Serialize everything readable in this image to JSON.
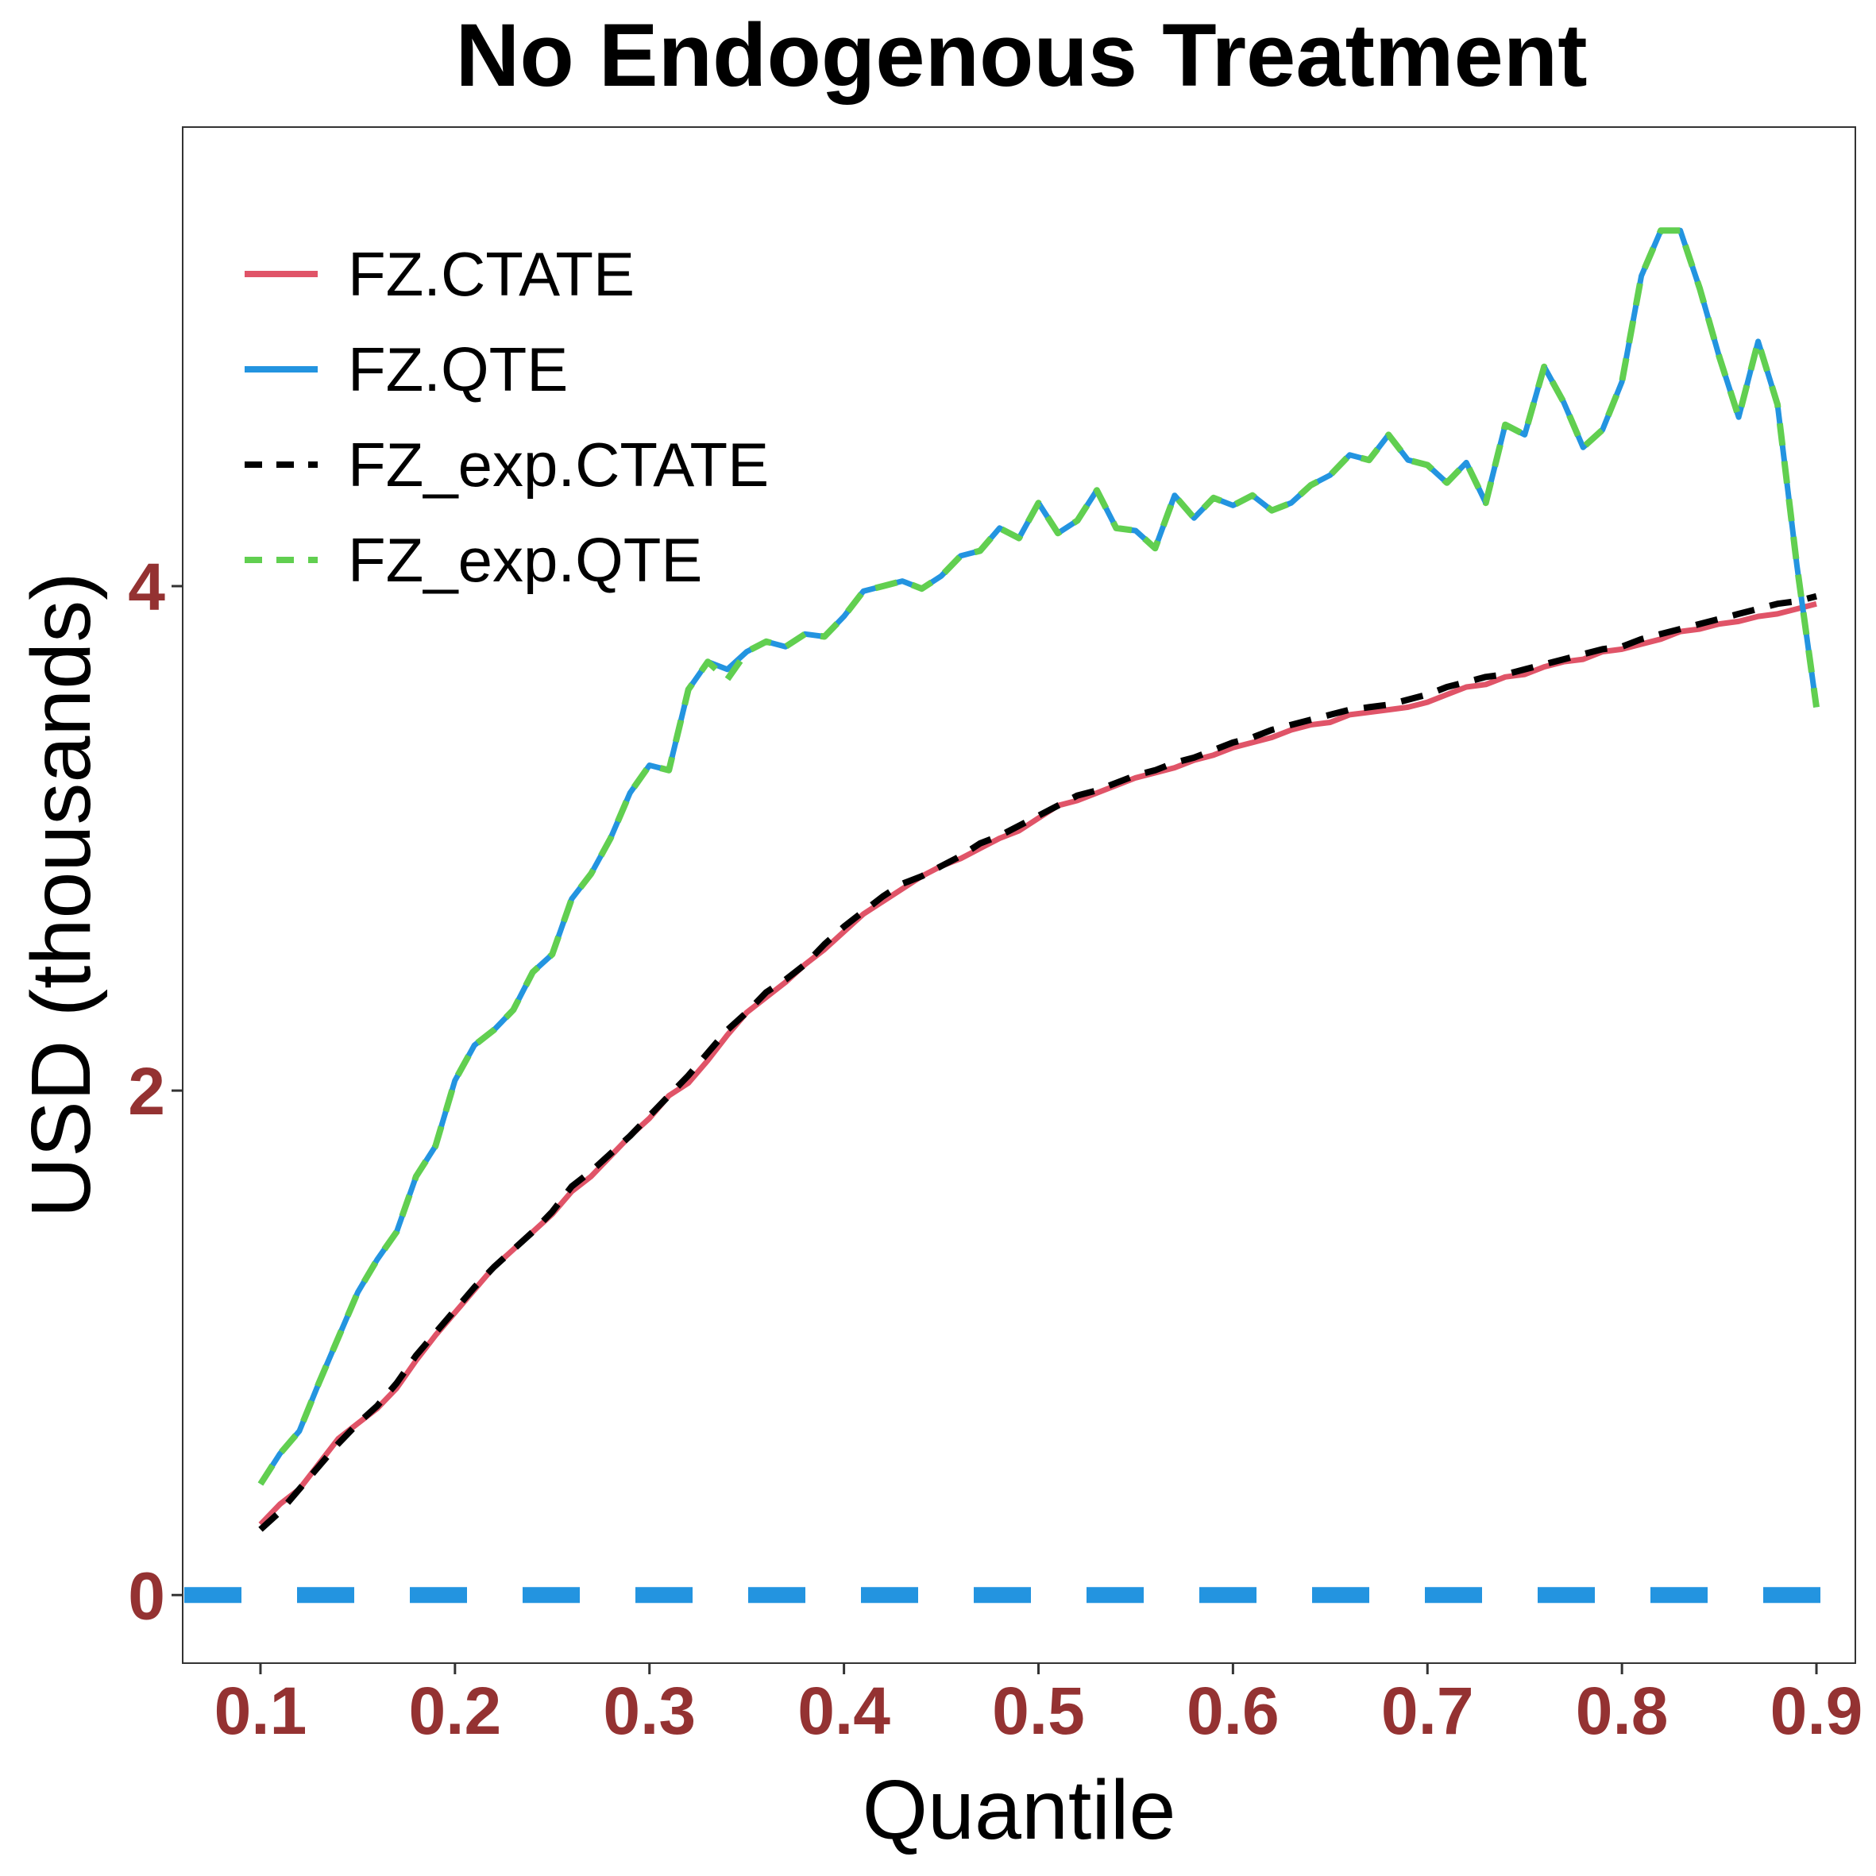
{
  "chart_data": {
    "type": "line",
    "title": "No Endogenous Treatment",
    "xlabel": "Quantile",
    "ylabel": "USD (thousands)",
    "xlim": [
      0.06,
      0.92
    ],
    "ylim": [
      -0.27,
      5.82
    ],
    "x_ticks": [
      0.1,
      0.2,
      0.3,
      0.4,
      0.5,
      0.6,
      0.7,
      0.8,
      0.9
    ],
    "x_tick_labels": [
      "0.1",
      "0.2",
      "0.3",
      "0.4",
      "0.5",
      "0.6",
      "0.7",
      "0.8",
      "0.9"
    ],
    "y_ticks": [
      0,
      2,
      4
    ],
    "y_tick_labels": [
      "0",
      "2",
      "4"
    ],
    "tick_label_color": "#943232",
    "grid": false,
    "legend_position": "top-left",
    "reference_line": {
      "y": 0,
      "color": "#2394e0",
      "style": "dashed"
    },
    "series": [
      {
        "name": "FZ.CTATE",
        "color": "#e05468",
        "dash": "solid",
        "x": [
          0.1,
          0.11,
          0.12,
          0.13,
          0.14,
          0.15,
          0.16,
          0.17,
          0.18,
          0.19,
          0.2,
          0.21,
          0.22,
          0.23,
          0.24,
          0.25,
          0.26,
          0.27,
          0.28,
          0.29,
          0.3,
          0.31,
          0.32,
          0.33,
          0.34,
          0.35,
          0.36,
          0.37,
          0.38,
          0.39,
          0.4,
          0.41,
          0.42,
          0.43,
          0.44,
          0.45,
          0.46,
          0.47,
          0.48,
          0.49,
          0.5,
          0.51,
          0.52,
          0.53,
          0.54,
          0.55,
          0.56,
          0.57,
          0.58,
          0.59,
          0.6,
          0.61,
          0.62,
          0.63,
          0.64,
          0.65,
          0.66,
          0.67,
          0.68,
          0.69,
          0.7,
          0.71,
          0.72,
          0.73,
          0.74,
          0.75,
          0.76,
          0.77,
          0.78,
          0.79,
          0.8,
          0.81,
          0.82,
          0.83,
          0.84,
          0.85,
          0.86,
          0.87,
          0.88,
          0.89,
          0.9
        ],
        "y": [
          0.28,
          0.36,
          0.42,
          0.52,
          0.62,
          0.68,
          0.74,
          0.82,
          0.93,
          1.03,
          1.12,
          1.21,
          1.3,
          1.37,
          1.44,
          1.51,
          1.6,
          1.66,
          1.74,
          1.82,
          1.89,
          1.98,
          2.03,
          2.12,
          2.22,
          2.31,
          2.37,
          2.43,
          2.5,
          2.56,
          2.63,
          2.7,
          2.75,
          2.8,
          2.85,
          2.89,
          2.92,
          2.96,
          3.0,
          3.03,
          3.08,
          3.13,
          3.15,
          3.18,
          3.21,
          3.24,
          3.26,
          3.28,
          3.31,
          3.33,
          3.36,
          3.38,
          3.4,
          3.43,
          3.45,
          3.46,
          3.49,
          3.5,
          3.51,
          3.52,
          3.54,
          3.57,
          3.6,
          3.61,
          3.64,
          3.65,
          3.68,
          3.7,
          3.71,
          3.74,
          3.75,
          3.77,
          3.79,
          3.82,
          3.83,
          3.85,
          3.86,
          3.88,
          3.89,
          3.91,
          3.93
        ]
      },
      {
        "name": "FZ.QTE",
        "color": "#2394e0",
        "dash": "solid",
        "x": [
          0.1,
          0.11,
          0.12,
          0.13,
          0.14,
          0.15,
          0.16,
          0.17,
          0.18,
          0.19,
          0.2,
          0.21,
          0.22,
          0.23,
          0.24,
          0.25,
          0.26,
          0.27,
          0.28,
          0.29,
          0.3,
          0.31,
          0.32,
          0.33,
          0.34,
          0.35,
          0.36,
          0.37,
          0.38,
          0.39,
          0.4,
          0.41,
          0.42,
          0.43,
          0.44,
          0.45,
          0.46,
          0.47,
          0.48,
          0.49,
          0.5,
          0.51,
          0.52,
          0.53,
          0.54,
          0.55,
          0.56,
          0.57,
          0.58,
          0.59,
          0.6,
          0.61,
          0.62,
          0.63,
          0.64,
          0.65,
          0.66,
          0.67,
          0.68,
          0.69,
          0.7,
          0.71,
          0.72,
          0.73,
          0.74,
          0.75,
          0.76,
          0.77,
          0.78,
          0.79,
          0.8,
          0.81,
          0.82,
          0.83,
          0.84,
          0.85,
          0.86,
          0.87,
          0.88,
          0.89,
          0.9
        ],
        "y": [
          0.44,
          0.56,
          0.65,
          0.84,
          1.02,
          1.2,
          1.33,
          1.44,
          1.66,
          1.78,
          2.04,
          2.18,
          2.24,
          2.32,
          2.47,
          2.54,
          2.76,
          2.86,
          3.0,
          3.18,
          3.29,
          3.27,
          3.59,
          3.7,
          3.67,
          3.74,
          3.78,
          3.76,
          3.81,
          3.8,
          3.88,
          3.98,
          4.0,
          4.02,
          3.99,
          4.04,
          4.12,
          4.14,
          4.23,
          4.19,
          4.33,
          4.21,
          4.26,
          4.38,
          4.23,
          4.22,
          4.15,
          4.36,
          4.27,
          4.35,
          4.32,
          4.36,
          4.3,
          4.33,
          4.4,
          4.44,
          4.52,
          4.5,
          4.6,
          4.5,
          4.48,
          4.41,
          4.49,
          4.33,
          4.64,
          4.6,
          4.87,
          4.73,
          4.55,
          4.62,
          4.81,
          5.23,
          5.41,
          5.41,
          5.18,
          4.91,
          4.67,
          4.97,
          4.72,
          4.08,
          3.52
        ]
      },
      {
        "name": "FZ_exp.CTATE",
        "color": "#000000",
        "dash": "dashed",
        "x": [
          0.1,
          0.11,
          0.12,
          0.13,
          0.14,
          0.15,
          0.16,
          0.17,
          0.18,
          0.19,
          0.2,
          0.21,
          0.22,
          0.23,
          0.24,
          0.25,
          0.26,
          0.27,
          0.28,
          0.29,
          0.3,
          0.31,
          0.32,
          0.33,
          0.34,
          0.35,
          0.36,
          0.37,
          0.38,
          0.39,
          0.4,
          0.41,
          0.42,
          0.43,
          0.44,
          0.45,
          0.46,
          0.47,
          0.48,
          0.49,
          0.5,
          0.51,
          0.52,
          0.53,
          0.54,
          0.55,
          0.56,
          0.57,
          0.58,
          0.59,
          0.6,
          0.61,
          0.62,
          0.63,
          0.64,
          0.65,
          0.66,
          0.67,
          0.68,
          0.69,
          0.7,
          0.71,
          0.72,
          0.73,
          0.74,
          0.75,
          0.76,
          0.77,
          0.78,
          0.79,
          0.8,
          0.81,
          0.82,
          0.83,
          0.84,
          0.85,
          0.86,
          0.87,
          0.88,
          0.89,
          0.9
        ],
        "y": [
          0.26,
          0.33,
          0.42,
          0.51,
          0.6,
          0.68,
          0.75,
          0.84,
          0.95,
          1.04,
          1.13,
          1.22,
          1.3,
          1.37,
          1.44,
          1.52,
          1.62,
          1.68,
          1.75,
          1.82,
          1.9,
          1.98,
          2.06,
          2.15,
          2.24,
          2.31,
          2.39,
          2.44,
          2.5,
          2.58,
          2.65,
          2.71,
          2.77,
          2.82,
          2.85,
          2.89,
          2.93,
          2.98,
          3.01,
          3.05,
          3.09,
          3.13,
          3.17,
          3.19,
          3.22,
          3.25,
          3.27,
          3.3,
          3.32,
          3.35,
          3.38,
          3.4,
          3.43,
          3.45,
          3.47,
          3.49,
          3.51,
          3.52,
          3.53,
          3.55,
          3.57,
          3.6,
          3.62,
          3.64,
          3.65,
          3.67,
          3.69,
          3.71,
          3.73,
          3.75,
          3.76,
          3.79,
          3.81,
          3.83,
          3.85,
          3.87,
          3.89,
          3.91,
          3.93,
          3.94,
          3.96
        ]
      },
      {
        "name": "FZ_exp.QTE",
        "color": "#61cf50",
        "dash": "dashed",
        "x": [
          0.1,
          0.11,
          0.12,
          0.13,
          0.14,
          0.15,
          0.16,
          0.17,
          0.18,
          0.19,
          0.2,
          0.21,
          0.22,
          0.23,
          0.24,
          0.25,
          0.26,
          0.27,
          0.28,
          0.29,
          0.3,
          0.31,
          0.32,
          0.33,
          0.34,
          0.35,
          0.36,
          0.37,
          0.38,
          0.39,
          0.4,
          0.41,
          0.42,
          0.43,
          0.44,
          0.45,
          0.46,
          0.47,
          0.48,
          0.49,
          0.5,
          0.51,
          0.52,
          0.53,
          0.54,
          0.55,
          0.56,
          0.57,
          0.58,
          0.59,
          0.6,
          0.61,
          0.62,
          0.63,
          0.64,
          0.65,
          0.66,
          0.67,
          0.68,
          0.69,
          0.7,
          0.71,
          0.72,
          0.73,
          0.74,
          0.75,
          0.76,
          0.77,
          0.78,
          0.79,
          0.8,
          0.81,
          0.82,
          0.83,
          0.84,
          0.85,
          0.86,
          0.87,
          0.88,
          0.89,
          0.9
        ],
        "y": [
          0.44,
          0.56,
          0.65,
          0.84,
          1.02,
          1.2,
          1.33,
          1.44,
          1.66,
          1.78,
          2.04,
          2.18,
          2.24,
          2.32,
          2.47,
          2.54,
          2.76,
          2.86,
          3.0,
          3.18,
          3.29,
          3.27,
          3.59,
          3.7,
          3.63,
          3.74,
          3.78,
          3.76,
          3.81,
          3.8,
          3.88,
          3.98,
          4.0,
          4.02,
          3.99,
          4.04,
          4.12,
          4.14,
          4.23,
          4.19,
          4.33,
          4.21,
          4.26,
          4.38,
          4.23,
          4.22,
          4.15,
          4.36,
          4.27,
          4.35,
          4.32,
          4.36,
          4.3,
          4.33,
          4.4,
          4.44,
          4.52,
          4.5,
          4.6,
          4.5,
          4.48,
          4.41,
          4.49,
          4.33,
          4.64,
          4.6,
          4.87,
          4.73,
          4.55,
          4.62,
          4.81,
          5.23,
          5.41,
          5.41,
          5.18,
          4.91,
          4.67,
          4.97,
          4.72,
          4.08,
          3.52
        ]
      }
    ]
  }
}
